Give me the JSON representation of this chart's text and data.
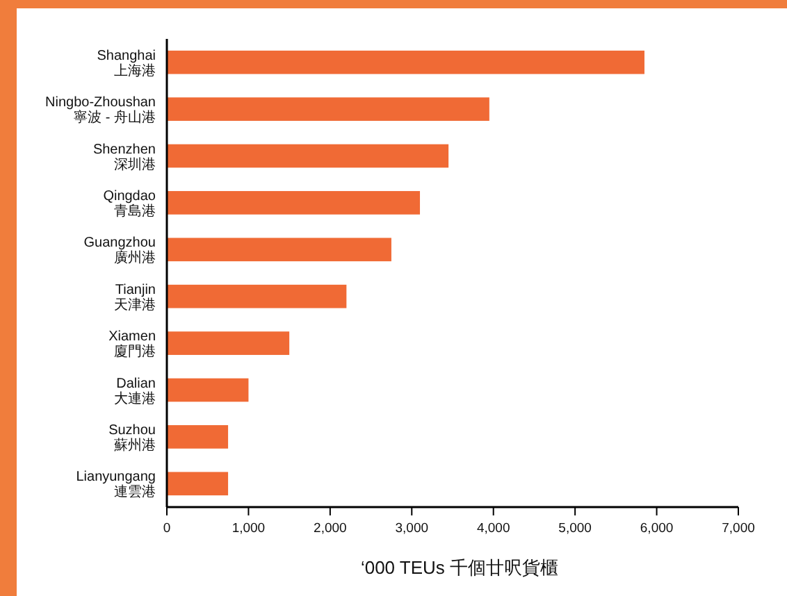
{
  "chart_data": {
    "type": "bar",
    "orientation": "horizontal",
    "categories": [
      "Shanghai\n上海港",
      "Ningbo-Zhoushan\n寧波 - 舟山港",
      "Shenzhen\n深圳港",
      "Qingdao\n青島港",
      "Guangzhou\n廣州港",
      "Tianjin\n天津港",
      "Xiamen\n廈門港",
      "Dalian\n大連港",
      "Suzhou\n蘇州港",
      "Lianyungang\n連雲港"
    ],
    "values": [
      5850,
      3950,
      3450,
      3100,
      2750,
      2200,
      1500,
      1000,
      750,
      750
    ],
    "color": "#f06a35",
    "xlim": [
      0,
      7000
    ],
    "xticks": [
      0,
      {
        "value": 1000,
        "label": "1,000"
      },
      {
        "value": 2000,
        "label": "2,000"
      },
      {
        "value": 3000,
        "label": "3,000"
      },
      {
        "value": 4000,
        "label": "4,000"
      },
      {
        "value": 5000,
        "label": "5,000"
      },
      {
        "value": 6000,
        "label": "6,000"
      },
      {
        "value": 7000,
        "label": "7,000"
      }
    ],
    "xlabel": "‘000 TEUs 千個廿呎貨櫃"
  }
}
